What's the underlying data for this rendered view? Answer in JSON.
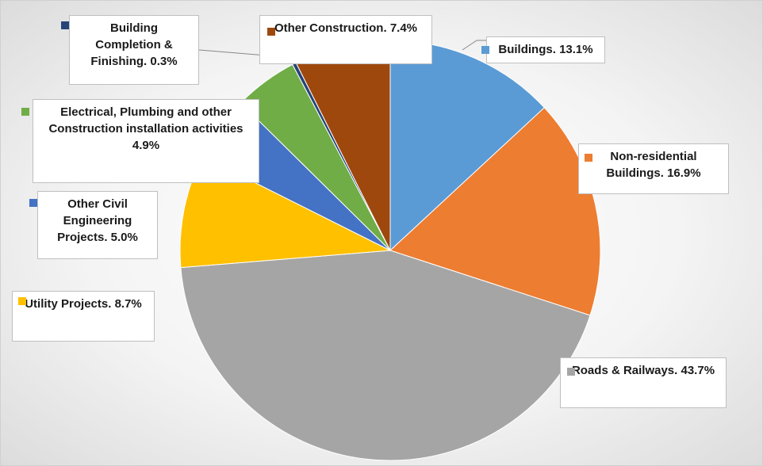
{
  "chart_data": {
    "type": "pie",
    "categories": [
      "Buildings.",
      "Non-residential Buildings.",
      "Roads & Railways.",
      "Utility Projects.",
      "Other Civil Engineering Projects.",
      "Electrical, Plumbing and other Construction installation activities",
      "Building Completion & Finishing.",
      "Other Construction."
    ],
    "values": [
      13.1,
      16.9,
      43.7,
      8.7,
      5.0,
      4.9,
      0.3,
      7.4
    ],
    "value_labels": [
      "13.1%",
      "16.9%",
      "43.7%",
      "8.7%",
      "5.0%",
      "4.9%",
      "0.3%",
      "7.4%"
    ],
    "colors": [
      "#5b9bd5",
      "#ed7d31",
      "#a5a5a5",
      "#ffc000",
      "#4472c4",
      "#70ad47",
      "#264478",
      "#9e480e"
    ]
  }
}
